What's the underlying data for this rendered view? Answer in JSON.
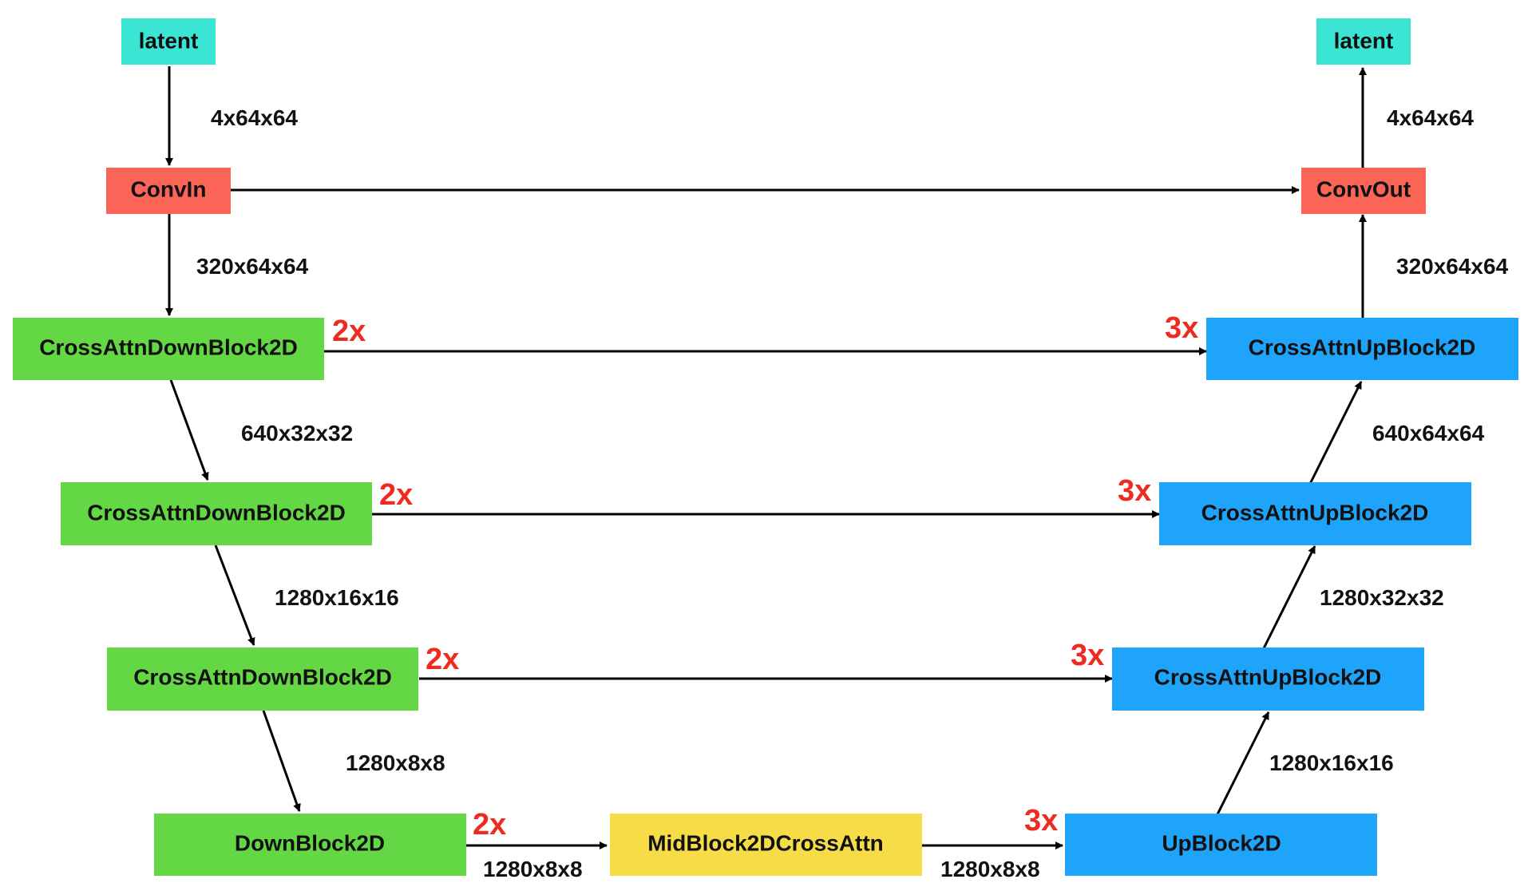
{
  "colors": {
    "latent": "#3be5d3",
    "conv": "#fb6558",
    "down": "#63d744",
    "mid": "#f6dd47",
    "up": "#1ea5fb",
    "multiplier": "#ee2b1e"
  },
  "nodes": {
    "latent_in": "latent",
    "conv_in": "ConvIn",
    "down1": "CrossAttnDownBlock2D",
    "down2": "CrossAttnDownBlock2D",
    "down3": "CrossAttnDownBlock2D",
    "down4": "DownBlock2D",
    "mid": "MidBlock2DCrossAttn",
    "up4": "UpBlock2D",
    "up3": "CrossAttnUpBlock2D",
    "up2": "CrossAttnUpBlock2D",
    "up1": "CrossAttnUpBlock2D",
    "conv_out": "ConvOut",
    "latent_out": "latent"
  },
  "multipliers": {
    "down1": "2x",
    "down2": "2x",
    "down3": "2x",
    "down4": "2x",
    "up1": "3x",
    "up2": "3x",
    "up3": "3x",
    "up4": "3x"
  },
  "dims": {
    "latent_to_convin": "4x64x64",
    "convin_to_down1": "320x64x64",
    "down1_to_down2": "640x32x32",
    "down2_to_down3": "1280x16x16",
    "down3_to_down4": "1280x8x8",
    "down4_to_mid": "1280x8x8",
    "mid_to_up4": "1280x8x8",
    "up4_to_up3": "1280x16x16",
    "up3_to_up2": "1280x32x32",
    "up2_to_up1": "640x64x64",
    "up1_to_convout": "320x64x64",
    "convout_to_latent": "4x64x64"
  }
}
